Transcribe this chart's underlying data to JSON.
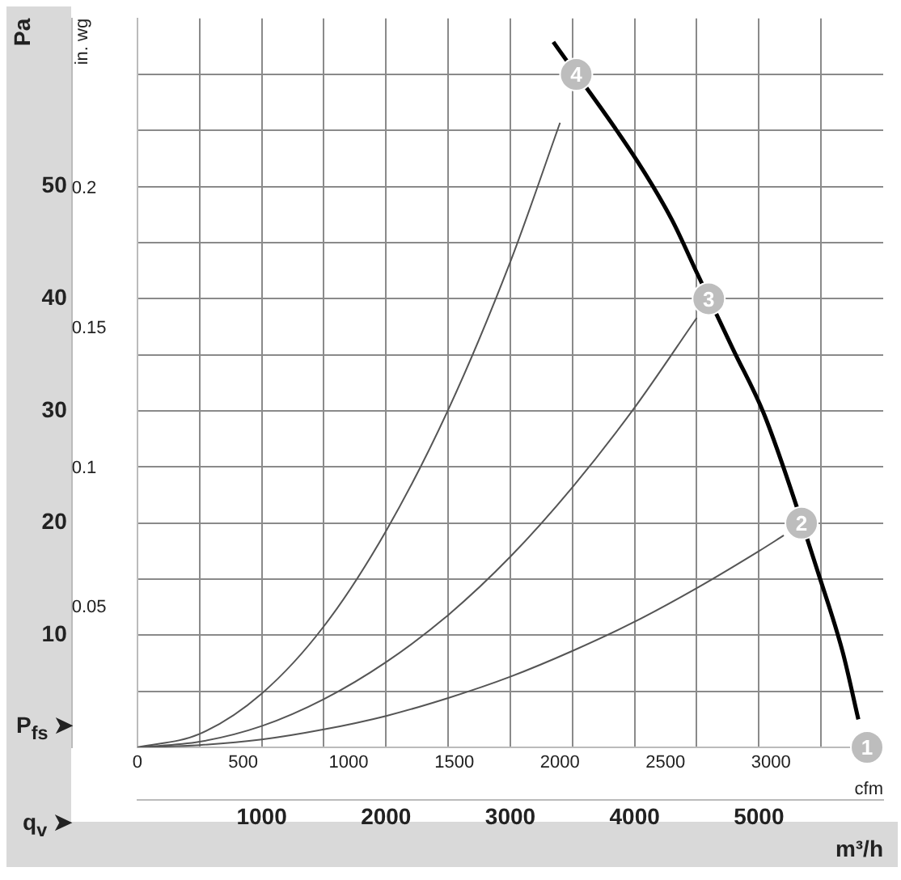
{
  "chart_data": {
    "type": "line",
    "xlabel": "m³/h",
    "x2label": "cfm",
    "ylabel": "Pa",
    "y2label": "in. wg",
    "annotations": [
      "P$_{fs}$ ➤",
      "q$_{v}$ ➤",
      {
        "text": "1",
        "x": 5870,
        "y": 0
      },
      {
        "text": "2",
        "x": 5343,
        "y": 20.0
      },
      {
        "text": "3",
        "x": 4596,
        "y": 40.0
      },
      {
        "text": "4",
        "x": 3530,
        "y": 60.0
      }
    ],
    "xlim": [
      0,
      6000
    ],
    "xticks": [
      {
        "value": 0,
        "label": null
      },
      {
        "value": 500,
        "label": null
      },
      1000,
      {
        "value": 1500,
        "label": null
      },
      2000,
      {
        "value": 2500,
        "label": null
      },
      3000,
      {
        "value": 3500,
        "label": null
      },
      4000,
      {
        "value": 4500,
        "label": null
      },
      5000,
      {
        "value": 5500,
        "label": null
      }
    ],
    "x2lim": [
      0,
      3531
    ],
    "x2ticks": [
      0,
      500,
      1000,
      1500,
      2000,
      2500,
      3000
    ],
    "ylim": [
      0,
      65
    ],
    "yticks": [
      {
        "value": 0,
        "label": null
      },
      {
        "value": 5,
        "label": null
      },
      10,
      {
        "value": 15,
        "label": null
      },
      20,
      {
        "value": 25,
        "label": null
      },
      30,
      {
        "value": 35,
        "label": null
      },
      40,
      {
        "value": 45,
        "label": null
      },
      50,
      {
        "value": 55,
        "label": null
      },
      {
        "value": 60,
        "label": null
      }
    ],
    "y2lim": [
      0,
      0.261
    ],
    "y2ticks": [
      0.05,
      0.1,
      0.15,
      0.2
    ],
    "grid": true,
    "legend": false,
    "line_style": "solid",
    "series": [
      {
        "color": "#000000",
        "x": [
          3346,
          4020,
          4302,
          4510,
          4792,
          5049,
          5490,
          5674,
          5800
        ],
        "values": [
          62.9,
          52.3,
          47.0,
          42.1,
          35.5,
          29.5,
          15.1,
          8.5,
          2.5
        ]
      },
      {
        "color": "#555555",
        "x": [
          0,
          500,
          1000,
          1500,
          2000,
          2500,
          3000,
          3400
        ],
        "values": [
          0,
          1.2,
          4.8,
          10.8,
          19.3,
          30.1,
          43.3,
          55.7
        ]
      },
      {
        "color": "#555555",
        "x": [
          0,
          500,
          1000,
          1500,
          2000,
          2500,
          3000,
          3500,
          4000,
          4500
        ],
        "values": [
          0,
          0.5,
          1.9,
          4.3,
          7.6,
          11.8,
          17.0,
          23.2,
          30.3,
          38.3
        ]
      },
      {
        "color": "#555555",
        "x": [
          0,
          500,
          1000,
          1500,
          2000,
          2500,
          3000,
          3500,
          4000,
          4500,
          5000,
          5200
        ],
        "values": [
          0,
          0.2,
          0.7,
          1.6,
          2.8,
          4.4,
          6.3,
          8.6,
          11.2,
          14.2,
          17.5,
          18.9
        ]
      },
      {
        "type": "scatter",
        "marker": "circle",
        "color": "#bdbdbd",
        "x": [
          5870,
          5343,
          4596,
          3530
        ],
        "values": [
          0,
          20.0,
          40.0,
          60.0
        ]
      }
    ]
  }
}
